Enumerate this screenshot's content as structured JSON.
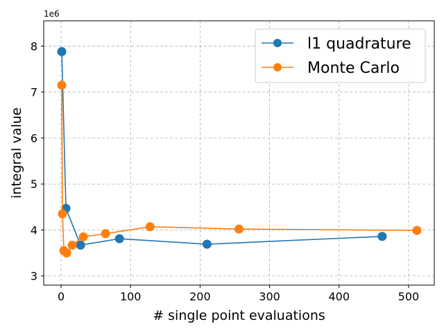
{
  "chart_data": {
    "type": "line",
    "title": "",
    "xlabel": "# single point evaluations",
    "ylabel": "integral value",
    "y_offset_label": "1e6",
    "xlim": [
      -25,
      537
    ],
    "ylim": [
      2.8,
      8.55
    ],
    "xticks": [
      0,
      100,
      200,
      300,
      400,
      500
    ],
    "xtick_labels": [
      "0",
      "100",
      "200",
      "300",
      "400",
      "500"
    ],
    "yticks": [
      3,
      4,
      5,
      6,
      7,
      8
    ],
    "ytick_labels": [
      "3",
      "4",
      "5",
      "6",
      "7",
      "8"
    ],
    "grid": true,
    "legend_position": "top-right",
    "series": [
      {
        "name": "l1 quadrature",
        "color": "#1f77b4",
        "x": [
          1,
          7,
          28,
          84,
          210,
          462
        ],
        "y": [
          7.88,
          4.47,
          3.67,
          3.81,
          3.69,
          3.86
        ]
      },
      {
        "name": "Monte Carlo",
        "color": "#ff7f0e",
        "x": [
          1,
          2,
          4,
          8,
          16,
          32,
          64,
          128,
          256,
          512
        ],
        "y": [
          7.15,
          4.35,
          3.55,
          3.5,
          3.67,
          3.85,
          3.92,
          4.07,
          4.02,
          3.99
        ]
      }
    ]
  }
}
